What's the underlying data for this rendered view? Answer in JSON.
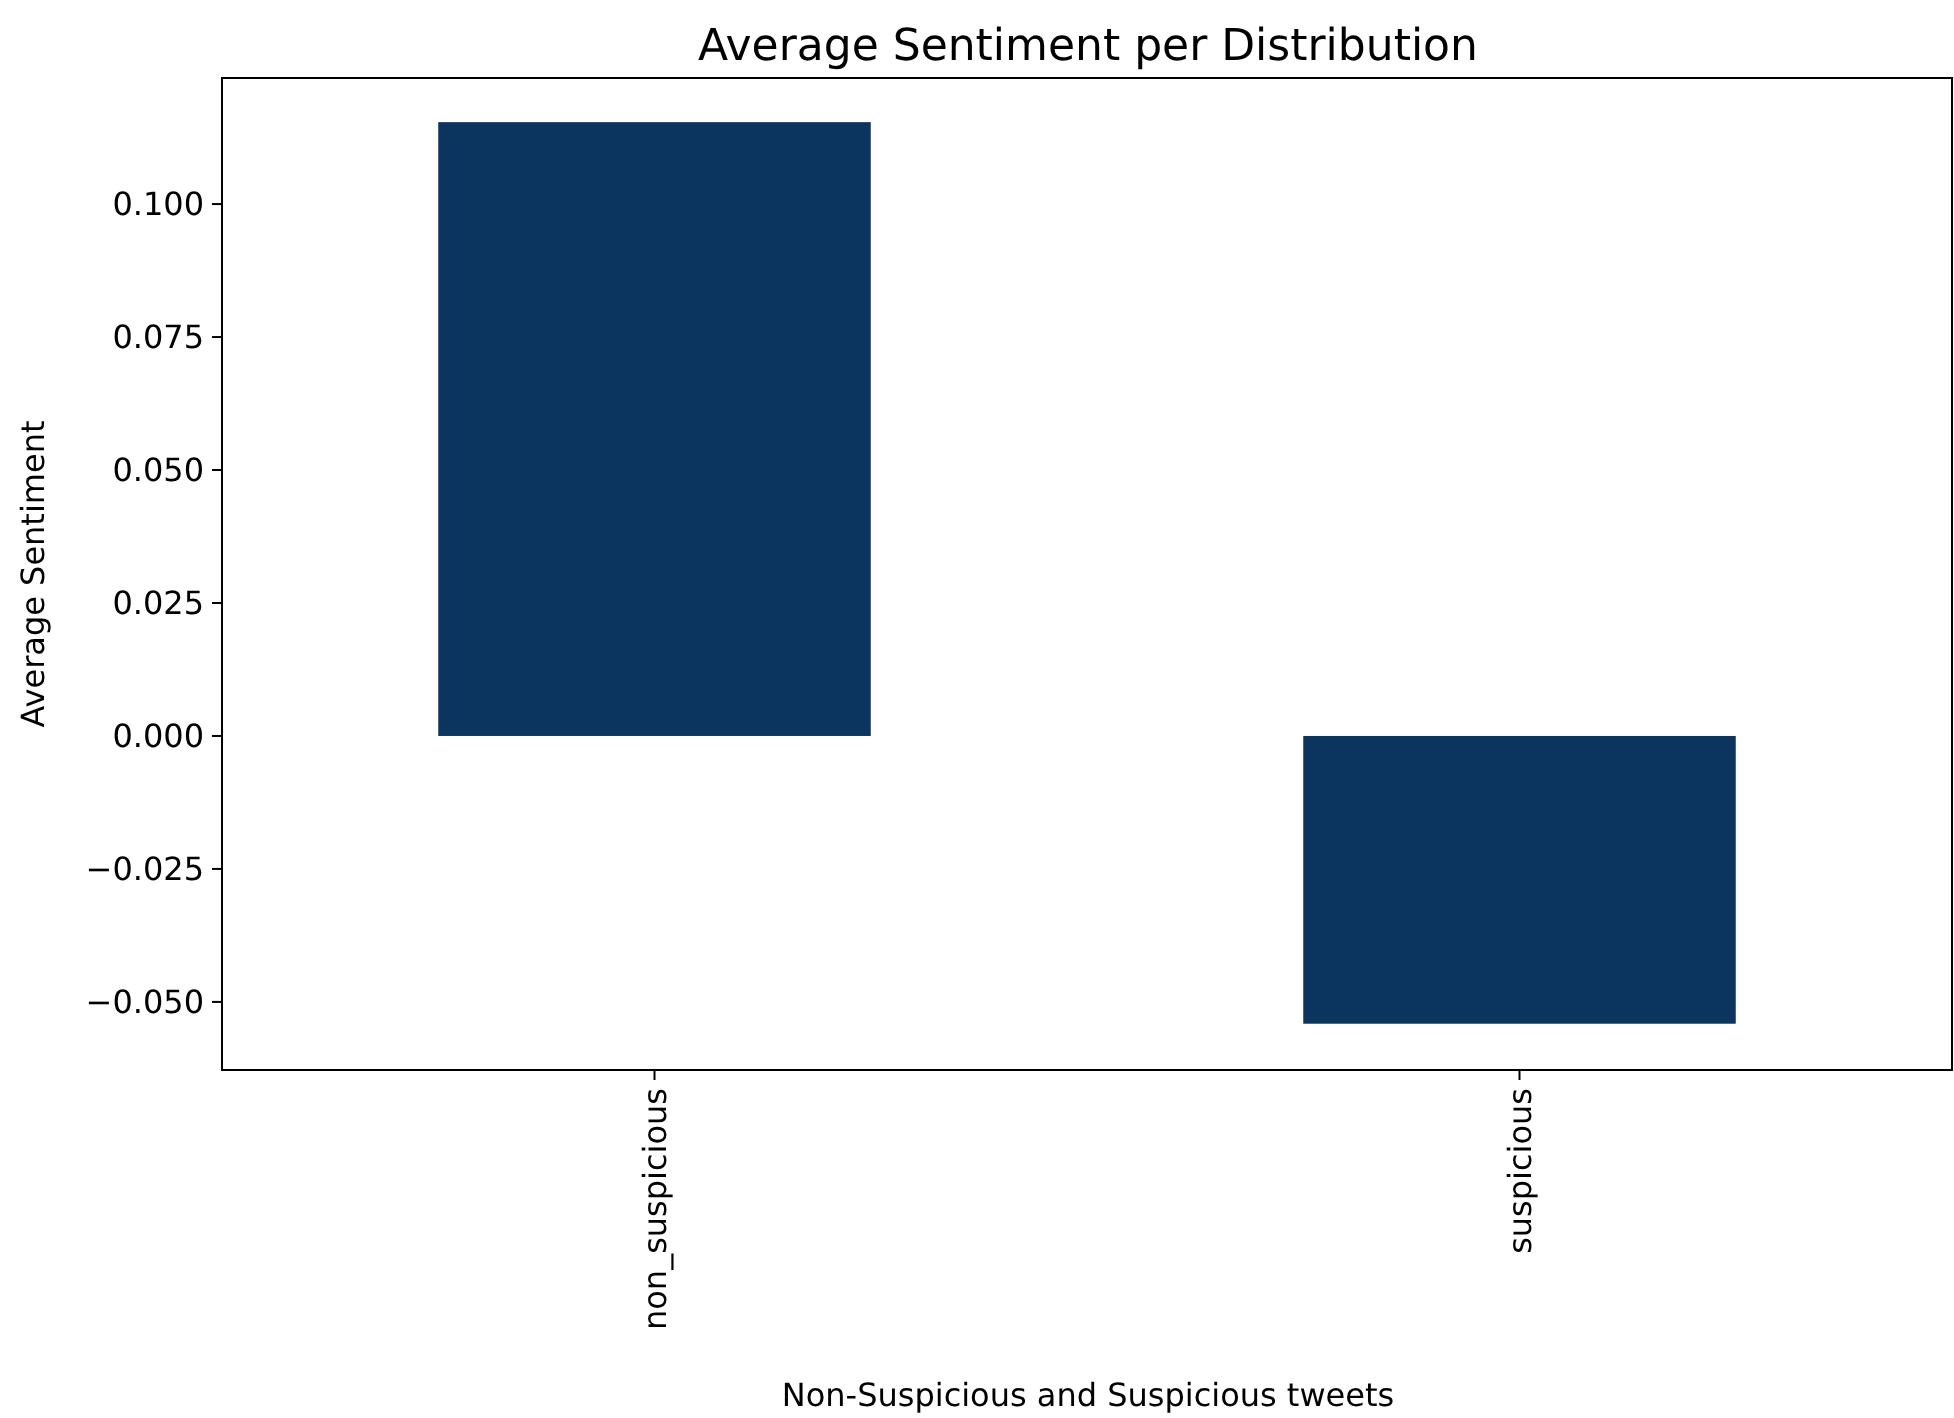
{
  "chart_data": {
    "type": "bar",
    "title": "Average Sentiment per Distribution",
    "xlabel": "Non-Suspicious and Suspicious tweets",
    "ylabel": "Average Sentiment",
    "categories": [
      "non_suspicious",
      "suspicious"
    ],
    "values": [
      0.1154,
      -0.0541
    ],
    "color": "#0b355e",
    "ylim": [
      -0.0628,
      0.1237
    ],
    "yticks": [
      {
        "value": -0.05,
        "label": "−0.050"
      },
      {
        "value": -0.025,
        "label": "−0.025"
      },
      {
        "value": 0,
        "label": "0.000"
      },
      {
        "value": 0.025,
        "label": "0.025"
      },
      {
        "value": 0.05,
        "label": "0.050"
      },
      {
        "value": 0.075,
        "label": "0.075"
      },
      {
        "value": 0.1,
        "label": "0.100"
      }
    ]
  }
}
